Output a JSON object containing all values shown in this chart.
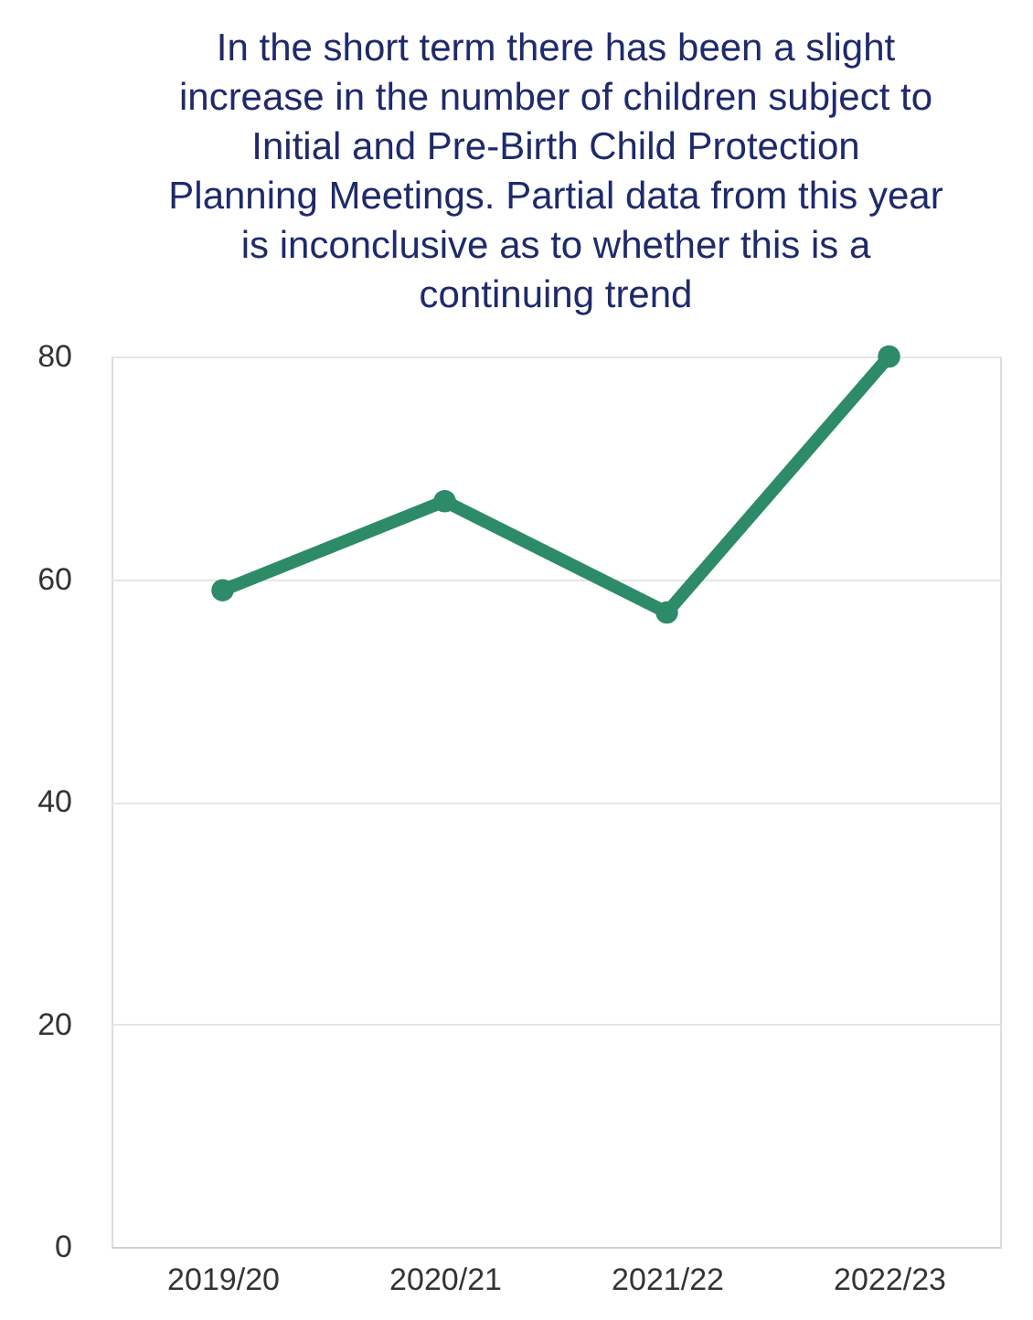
{
  "chart_data": {
    "type": "line",
    "title": "In the short term there has been a slight increase in the number of children subject to Initial and Pre-Birth Child Protection Planning Meetings. Partial data from this year is inconclusive as to whether this is a continuing trend",
    "categories": [
      "2019/20",
      "2020/21",
      "2021/22",
      "2022/23"
    ],
    "series": [
      {
        "color": "#2e8b67",
        "values": [
          59,
          67,
          57,
          80
        ]
      }
    ],
    "ylim": [
      0,
      80
    ],
    "yticks": [
      0,
      20,
      40,
      60,
      80
    ],
    "grid": "y",
    "marker": "circle",
    "line_style": "solid",
    "legend": false
  }
}
